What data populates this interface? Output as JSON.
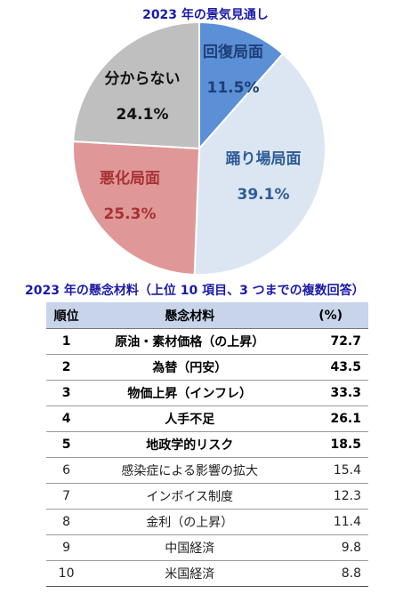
{
  "pie_title": "2023 年の景気見通し",
  "table_title": "2023 年の懸念材料（上位 10 項目、3 つまでの複数回答）",
  "chart_data": [
    {
      "type": "pie",
      "title": "2023 年の景気見通し",
      "slices": [
        {
          "label": "回復局面",
          "value": 11.5,
          "value_label": "11.5%",
          "color": "#5b8fd6",
          "text_color": "#1f3f78"
        },
        {
          "label": "踊り場局面",
          "value": 39.1,
          "value_label": "39.1%",
          "color": "#dce6f2",
          "text_color": "#2e5d96"
        },
        {
          "label": "悪化局面",
          "value": 25.3,
          "value_label": "25.3%",
          "color": "#e09797",
          "text_color": "#a83232"
        },
        {
          "label": "分からない",
          "value": 24.1,
          "value_label": "24.1%",
          "color": "#bfbfbf",
          "text_color": "#111111"
        }
      ]
    },
    {
      "type": "table",
      "title": "2023 年の懸念材料（上位 10 項目、3 つまでの複数回答）",
      "headers": [
        "順位",
        "懸念材料",
        "(%)"
      ],
      "rows": [
        {
          "rank": "1",
          "item": "原油・素材価格（の上昇）",
          "pct": "72.7",
          "bold": true
        },
        {
          "rank": "2",
          "item": "為替（円安）",
          "pct": "43.5",
          "bold": true
        },
        {
          "rank": "3",
          "item": "物価上昇（インフレ）",
          "pct": "33.3",
          "bold": true
        },
        {
          "rank": "4",
          "item": "人手不足",
          "pct": "26.1",
          "bold": true
        },
        {
          "rank": "5",
          "item": "地政学的リスク",
          "pct": "18.5",
          "bold": true
        },
        {
          "rank": "6",
          "item": "感染症による影響の拡大",
          "pct": "15.4",
          "bold": false
        },
        {
          "rank": "7",
          "item": "インボイス制度",
          "pct": "12.3",
          "bold": false
        },
        {
          "rank": "8",
          "item": "金利（の上昇）",
          "pct": "11.4",
          "bold": false
        },
        {
          "rank": "9",
          "item": "中国経済",
          "pct": "9.8",
          "bold": false
        },
        {
          "rank": "10",
          "item": "米国経済",
          "pct": "8.8",
          "bold": false
        }
      ]
    }
  ]
}
